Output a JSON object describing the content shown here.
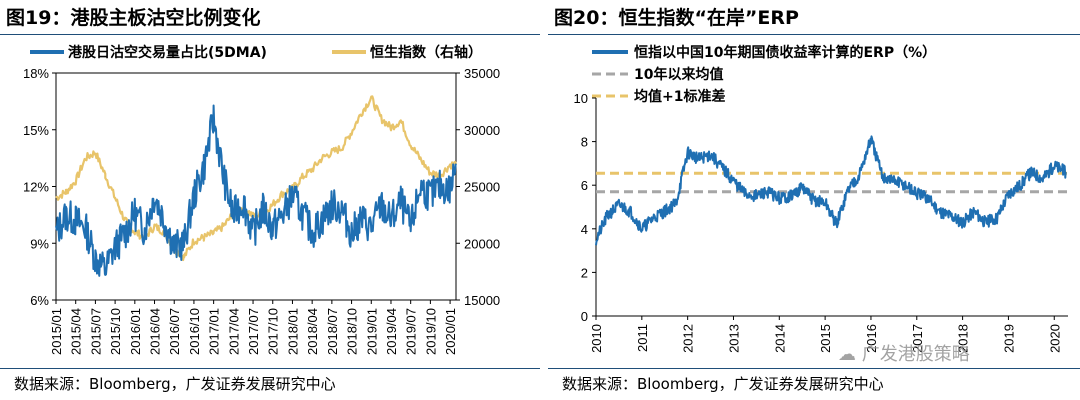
{
  "colors": {
    "blue": "#1f6fb2",
    "gold": "#e8c46a",
    "gray": "#a6a6a6",
    "dashgold": "#e8c46a",
    "rule": "#1f4e79"
  },
  "left": {
    "title": "图19：港股主板沽空比例变化",
    "source": "数据来源：Bloomberg，广发证券发展研究中心",
    "chart_data": {
      "type": "line",
      "title": "港股主板沽空比例变化",
      "legend": [
        "港股日沽空交易量占比(5DMA)",
        "恒生指数（右轴）"
      ],
      "y_left_ticks": [
        "18%",
        "15%",
        "12%",
        "9%",
        "6%"
      ],
      "y_left_range": [
        6,
        18
      ],
      "y_right_ticks": [
        "35000",
        "30000",
        "25000",
        "20000",
        "15000"
      ],
      "y_right_range": [
        15000,
        35000
      ],
      "x_ticks": [
        "2015/01",
        "2015/04",
        "2015/07",
        "2015/10",
        "2016/01",
        "2016/04",
        "2016/07",
        "2016/10",
        "2017/01",
        "2017/04",
        "2017/07",
        "2017/10",
        "2018/01",
        "2018/04",
        "2018/07",
        "2018/10",
        "2019/01",
        "2019/04",
        "2019/07",
        "2019/10",
        "2020/01"
      ],
      "series": [
        {
          "name": "港股日沽空交易量占比(5DMA)",
          "axis": "left",
          "x": [
            0,
            0.5,
            1,
            1.5,
            2,
            2.5,
            3,
            3.5,
            4,
            4.5,
            5,
            5.5,
            6,
            6.5,
            7,
            7.5,
            8,
            8.5,
            9,
            9.5,
            10,
            10.5,
            11,
            11.5,
            12,
            12.5,
            13,
            13.5,
            14,
            14.5,
            15,
            15.5,
            16,
            16.5,
            17,
            17.5,
            18,
            18.5,
            19,
            19.5,
            20,
            20.3
          ],
          "values": [
            9.5,
            10.5,
            10.2,
            9.8,
            8.2,
            7.6,
            8.8,
            9.5,
            10.6,
            9.7,
            11.5,
            10.2,
            8.8,
            9.0,
            11.5,
            13.0,
            15.6,
            12.5,
            10.5,
            11.2,
            9.5,
            10.8,
            9.8,
            10.5,
            11.5,
            10.6,
            9.6,
            10.2,
            11.0,
            10.8,
            9.5,
            10.3,
            9.8,
            11.0,
            10.2,
            11.2,
            9.8,
            12.0,
            11.5,
            12.0,
            11.8,
            13.2
          ]
        },
        {
          "name": "恒生指数（右轴）",
          "axis": "right",
          "x": [
            0,
            0.5,
            1,
            1.5,
            2,
            2.5,
            3,
            3.5,
            4,
            4.5,
            5,
            5.5,
            6,
            6.5,
            7,
            7.5,
            8,
            8.5,
            9,
            9.5,
            10,
            10.5,
            11,
            11.5,
            12,
            12.5,
            13,
            13.5,
            14,
            14.5,
            15,
            15.5,
            16,
            16.5,
            17,
            17.5,
            18,
            18.5,
            19,
            19.5,
            20,
            20.3
          ],
          "values": [
            24000,
            24500,
            25500,
            27500,
            28000,
            26000,
            24000,
            22000,
            21000,
            20500,
            21500,
            21000,
            19500,
            18800,
            20200,
            20500,
            20900,
            21500,
            22600,
            23200,
            22400,
            22600,
            23400,
            24400,
            24800,
            25800,
            26500,
            27500,
            28000,
            28400,
            29800,
            31500,
            32800,
            31000,
            30200,
            30800,
            28700,
            27400,
            26200,
            26000,
            26900,
            27000
          ]
        }
      ]
    }
  },
  "right": {
    "title": "图20：恒生指数“在岸”ERP",
    "source": "数据来源：Bloomberg，广发证券发展研究中心",
    "watermark": "广发港股策略",
    "chart_data": {
      "type": "line",
      "title": "恒生指数“在岸”ERP",
      "legend": [
        "恒指以中国10年期国债收益率计算的ERP（%）",
        "10年以来均值",
        "均值+1标准差"
      ],
      "y_ticks": [
        "10",
        "8",
        "6",
        "4",
        "2",
        "0"
      ],
      "y_range": [
        0,
        10
      ],
      "x_ticks": [
        "2010",
        "2011",
        "2012",
        "2013",
        "2014",
        "2015",
        "2016",
        "2017",
        "2018",
        "2019",
        "2020"
      ],
      "x_range": [
        2010,
        2020.3
      ],
      "mean": 5.7,
      "mean_plus_sd": 6.55,
      "series": [
        {
          "name": "恒指以中国10年期国债收益率计算的ERP（%）",
          "x": [
            2010,
            2010.25,
            2010.5,
            2010.75,
            2011,
            2011.25,
            2011.5,
            2011.75,
            2012,
            2012.25,
            2012.5,
            2012.75,
            2013,
            2013.25,
            2013.5,
            2013.75,
            2014,
            2014.25,
            2014.5,
            2014.75,
            2015,
            2015.25,
            2015.5,
            2015.75,
            2016,
            2016.25,
            2016.5,
            2016.75,
            2017,
            2017.25,
            2017.5,
            2017.75,
            2018,
            2018.25,
            2018.5,
            2018.75,
            2019,
            2019.25,
            2019.5,
            2019.75,
            2020,
            2020.25
          ],
          "values": [
            3.5,
            4.6,
            5.1,
            4.8,
            4.0,
            4.5,
            4.8,
            5.2,
            7.5,
            7.2,
            7.4,
            6.8,
            6.2,
            5.6,
            5.5,
            5.7,
            5.4,
            5.5,
            5.9,
            5.3,
            5.2,
            4.2,
            5.8,
            6.5,
            8.1,
            6.4,
            6.2,
            6.0,
            5.6,
            5.4,
            4.8,
            4.6,
            4.3,
            4.8,
            4.3,
            4.5,
            5.6,
            6.0,
            6.6,
            6.3,
            6.9,
            6.6
          ]
        }
      ]
    }
  }
}
